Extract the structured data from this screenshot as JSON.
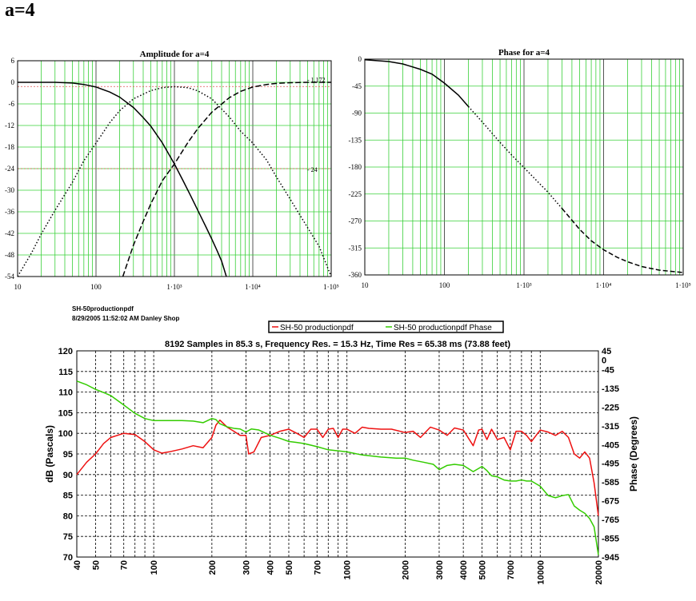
{
  "page": {
    "title": "a=4"
  },
  "meta": {
    "line1": "SH-50productionpdf",
    "line2": "8/29/2005  11:52:02 AM   Danley Shop"
  },
  "colors": {
    "grid_green": "#39d039",
    "red": "#ee1111",
    "green": "#33cc00",
    "dark_line": "#5a5a8a"
  },
  "chart_data": [
    {
      "type": "line",
      "title": "Amplitude for a=4",
      "x_scale": "log",
      "xlim": [
        10,
        100000
      ],
      "ylim": [
        -54,
        6
      ],
      "xticks": [
        "10",
        "100",
        "1·10³",
        "1·10⁴",
        "1·10⁵"
      ],
      "yticks": [
        "6",
        "0",
        "-6",
        "-12",
        "-18",
        "-24",
        "-30",
        "-36",
        "-42",
        "-48",
        "-54"
      ],
      "annotations": [
        "- 1.172",
        "- 24"
      ],
      "reference_lines_y": [
        -1.172,
        -24
      ],
      "grid": true,
      "series": [
        {
          "style": "solid",
          "x": [
            10,
            20,
            30,
            50,
            70,
            100,
            150,
            200,
            300,
            400,
            500,
            700,
            1000,
            1300,
            1600,
            2000,
            2500,
            3000,
            3500,
            4000,
            4600
          ],
          "y": [
            0,
            0,
            0,
            -0.2,
            -0.6,
            -1.3,
            -2.7,
            -4.1,
            -7,
            -9.8,
            -12.2,
            -16.8,
            -22.7,
            -27.5,
            -31.4,
            -35.7,
            -40,
            -43.6,
            -46.8,
            -49.7,
            -54
          ]
        },
        {
          "style": "dotted",
          "x": [
            10,
            15,
            20,
            30,
            50,
            70,
            100,
            150,
            200,
            300,
            500,
            700,
            1000,
            1500,
            2000,
            3000,
            5000,
            7000,
            10000,
            15000,
            20000,
            30000,
            50000,
            70000,
            100000
          ],
          "y": [
            -54,
            -47.5,
            -42.2,
            -35.6,
            -27.8,
            -21.8,
            -16.9,
            -11.2,
            -7.9,
            -4.6,
            -2.3,
            -1.5,
            -1.2,
            -1.5,
            -2.4,
            -4.6,
            -9.6,
            -13.6,
            -16.9,
            -21.6,
            -26.3,
            -32.5,
            -40.4,
            -45.6,
            -54
          ]
        },
        {
          "style": "dashed",
          "x": [
            220,
            300,
            400,
            500,
            700,
            1000,
            1500,
            2000,
            3000,
            5000,
            7000,
            10000,
            15000,
            20000,
            30000,
            50000,
            70000,
            100000
          ],
          "y": [
            -54,
            -45.3,
            -38.7,
            -33.8,
            -27.4,
            -22.7,
            -16.6,
            -12.8,
            -8.3,
            -4.3,
            -2.5,
            -1.3,
            -0.6,
            -0.3,
            -0.1,
            0,
            0,
            0
          ]
        }
      ]
    },
    {
      "type": "line",
      "title": "Phase for a=4",
      "x_scale": "log",
      "xlim": [
        10,
        100000
      ],
      "ylim": [
        -360,
        0
      ],
      "xticks": [
        "10",
        "100",
        "1·10³",
        "1·10⁴",
        "1·10⁵"
      ],
      "yticks": [
        "0",
        "-45",
        "-90",
        "-135",
        "-180",
        "-225",
        "-270",
        "-315",
        "-360"
      ],
      "grid": true,
      "series": [
        {
          "style": "mixed",
          "x": [
            10,
            20,
            30,
            50,
            70,
            100,
            150,
            200,
            300,
            500,
            700,
            1000,
            1500,
            2000,
            3000,
            5000,
            7000,
            10000,
            15000,
            20000,
            30000,
            50000,
            100000
          ],
          "y": [
            -1,
            -4,
            -8,
            -17,
            -25,
            -40,
            -60,
            -79,
            -105,
            -139,
            -160,
            -181,
            -205,
            -222,
            -249,
            -284,
            -303,
            -318,
            -331,
            -338,
            -346,
            -352,
            -356
          ]
        }
      ]
    },
    {
      "type": "line",
      "title": "8192 Samples in 85.3 s, Frequency Res. = 15.3 Hz, Time Res = 65.38 ms (73.88 feet)",
      "legend": [
        "SH-50 productionpdf",
        "SH-50 productionpdf Phase"
      ],
      "legend_position": "top-center",
      "ylabel": "dB (Pascals)",
      "y2label": "Phase (Degrees)",
      "x_scale": "log",
      "xlim": [
        40,
        20000
      ],
      "ylim": [
        70,
        120
      ],
      "y2lim": [
        -945,
        45
      ],
      "xticks": [
        "40",
        "50",
        "70",
        "100",
        "200",
        "300",
        "400",
        "500",
        "700",
        "1000",
        "2000",
        "3000",
        "4000",
        "5000",
        "7000",
        "10000",
        "20000"
      ],
      "yticks": [
        "120",
        "115",
        "110",
        "105",
        "100",
        "95",
        "90",
        "85",
        "80",
        "75",
        "70"
      ],
      "y2ticks": [
        "45",
        "0",
        "-45",
        "-135",
        "-225",
        "-315",
        "-405",
        "-495",
        "-585",
        "-675",
        "-765",
        "-855",
        "-945"
      ],
      "grid": true,
      "series": [
        {
          "name": "SH-50 productionpdf",
          "color": "#ee1111",
          "x": [
            40,
            45,
            50,
            55,
            60,
            70,
            80,
            90,
            100,
            110,
            120,
            140,
            160,
            180,
            200,
            210,
            220,
            240,
            260,
            280,
            300,
            310,
            330,
            360,
            400,
            450,
            500,
            550,
            600,
            650,
            700,
            750,
            800,
            850,
            900,
            950,
            1000,
            1100,
            1200,
            1300,
            1500,
            1700,
            2000,
            2200,
            2400,
            2700,
            3000,
            3300,
            3600,
            4000,
            4500,
            4800,
            5000,
            5300,
            5600,
            6000,
            6500,
            7000,
            7500,
            8000,
            8500,
            9000,
            10000,
            11000,
            12000,
            13000,
            14000,
            15000,
            16000,
            17000,
            18000,
            19000,
            20000
          ],
          "y": [
            90,
            93,
            95,
            97.5,
            99,
            100,
            99.7,
            98,
            96,
            95.2,
            95.5,
            96.2,
            97,
            96.5,
            99,
            102,
            103.2,
            101.5,
            100.5,
            99.5,
            99.5,
            95,
            95.5,
            99,
            99.5,
            100.5,
            101,
            100,
            99,
            101,
            101,
            99,
            101,
            101.2,
            99,
            101,
            101,
            100,
            101.5,
            101.2,
            101,
            101,
            100.2,
            100.5,
            99,
            101.5,
            100.8,
            99.5,
            101.3,
            100.8,
            97,
            100.8,
            101,
            98.5,
            101,
            98.5,
            99,
            96,
            100.5,
            100.5,
            99.5,
            98,
            100.8,
            100.3,
            99.5,
            100.5,
            99,
            95,
            94,
            95.5,
            94,
            88,
            80
          ]
        },
        {
          "name": "SH-50 productionpdf Phase",
          "color": "#33cc00",
          "x": [
            40,
            45,
            50,
            55,
            60,
            70,
            80,
            90,
            100,
            120,
            140,
            160,
            180,
            200,
            210,
            220,
            240,
            260,
            280,
            300,
            320,
            350,
            400,
            450,
            500,
            550,
            600,
            700,
            800,
            900,
            1000,
            1200,
            1500,
            1800,
            2000,
            2200,
            2500,
            2800,
            3000,
            3300,
            3600,
            4000,
            4500,
            5000,
            5300,
            5600,
            6000,
            6500,
            7000,
            7500,
            8000,
            8500,
            9000,
            10000,
            11000,
            12000,
            13000,
            14000,
            15000,
            16000,
            17000,
            18000,
            19000,
            20000
          ],
          "y": [
            -100,
            -118,
            -140,
            -155,
            -170,
            -215,
            -255,
            -280,
            -290,
            -290,
            -290,
            -292,
            -300,
            -280,
            -285,
            -305,
            -320,
            -327,
            -330,
            -345,
            -330,
            -335,
            -360,
            -375,
            -390,
            -395,
            -400,
            -415,
            -430,
            -435,
            -440,
            -455,
            -465,
            -470,
            -470,
            -480,
            -490,
            -500,
            -525,
            -505,
            -500,
            -505,
            -535,
            -510,
            -530,
            -555,
            -560,
            -575,
            -580,
            -580,
            -575,
            -580,
            -580,
            -605,
            -650,
            -660,
            -650,
            -645,
            -700,
            -720,
            -735,
            -760,
            -800,
            -935
          ]
        }
      ]
    }
  ]
}
